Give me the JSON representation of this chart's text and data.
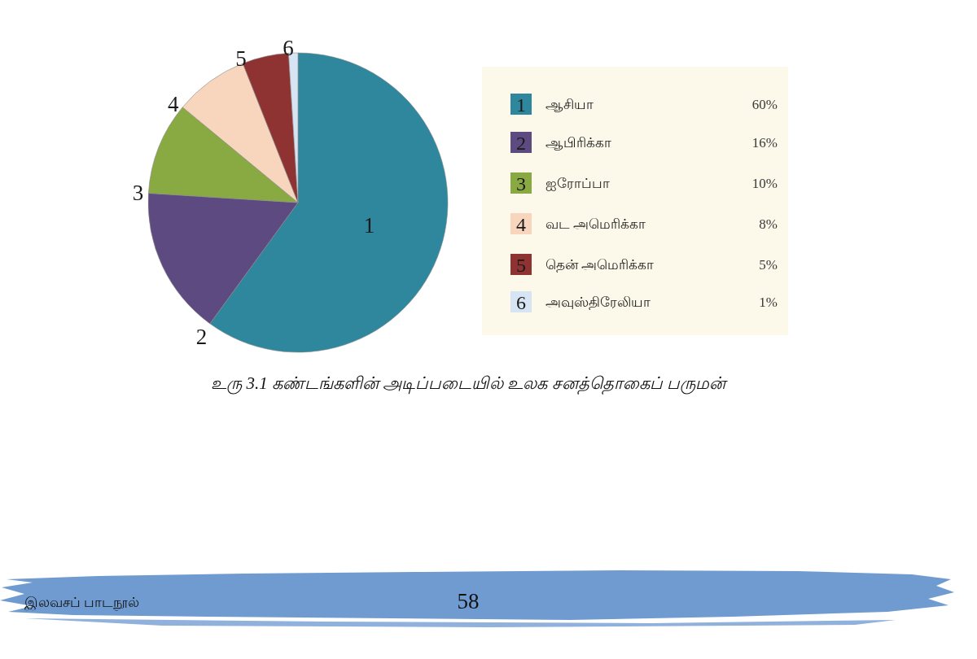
{
  "chart_data": {
    "type": "pie",
    "title": "உரு 3.1 கண்டங்களின் அடிப்படையில் உலக சனத்தொகைப் பருமன்",
    "categories": [
      "ஆசியா",
      "ஆபிரிக்கா",
      "ஐரோப்பா",
      "வட அமெரிக்கா",
      "தென் அமெரிக்கா",
      "அவுஸ்திரேலியா"
    ],
    "values": [
      60,
      16,
      10,
      8,
      5,
      1
    ],
    "colors": [
      "#2f879e",
      "#5d4a80",
      "#89a942",
      "#f8d5bd",
      "#8e3232",
      "#d6e4f3"
    ],
    "value_labels": [
      "60%",
      "16%",
      "10%",
      "8%",
      "5%",
      "1%"
    ],
    "legend": "right",
    "annotations": [
      {
        "text": "1",
        "x": "ஆசியா"
      },
      {
        "text": "2",
        "x": "ஆபிரிக்கா"
      },
      {
        "text": "3",
        "x": "ஐரோப்பா"
      },
      {
        "text": "4",
        "x": "வட அமெரிக்கா"
      },
      {
        "text": "5",
        "x": "தென் அமெரிக்கா"
      },
      {
        "text": "6",
        "x": "அவுஸ்திரேலியா"
      },
      "இலவசப் பாடநூல்",
      "58"
    ]
  }
}
